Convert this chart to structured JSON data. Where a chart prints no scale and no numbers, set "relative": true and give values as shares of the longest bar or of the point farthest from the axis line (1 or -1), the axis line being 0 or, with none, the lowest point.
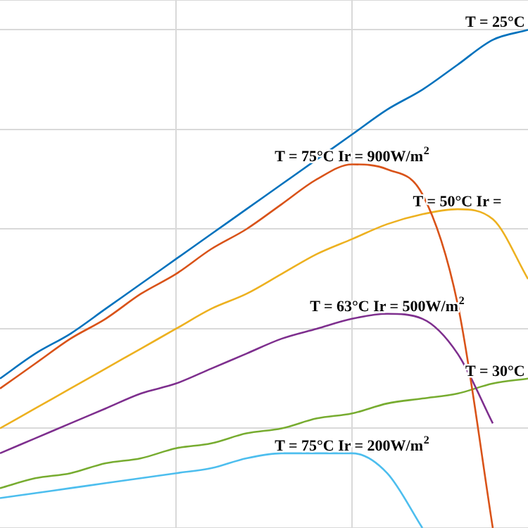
{
  "chart_data": {
    "type": "line",
    "relative": true,
    "grid": true,
    "marker": "none",
    "line_style": "solid",
    "legend": false,
    "tick_labels": false,
    "categories": [
      null,
      null,
      null,
      null,
      null,
      null,
      null,
      null,
      null,
      null,
      null,
      null,
      null,
      null,
      null,
      null
    ],
    "series": [
      {
        "name": "T = 25°C",
        "color": "#0072bd",
        "values": [
          0.3,
          0.35,
          0.39,
          0.44,
          0.49,
          0.54,
          0.59,
          0.64,
          0.69,
          0.74,
          0.79,
          0.84,
          0.88,
          0.93,
          0.98,
          1.0
        ]
      },
      {
        "name": "T = 75°C Ir = 900W/m$^{2}$",
        "color": "#d95319",
        "values": [
          0.28,
          0.33,
          0.38,
          0.42,
          0.47,
          0.51,
          0.56,
          0.6,
          0.65,
          0.7,
          0.73,
          0.72,
          0.67,
          0.45,
          0,
          null
        ]
      },
      {
        "name": "T = 50°C Ir =",
        "color": "#edb120",
        "values": [
          0.2,
          0.24,
          0.28,
          0.32,
          0.36,
          0.4,
          0.44,
          0.47,
          0.51,
          0.55,
          0.58,
          0.61,
          0.63,
          0.64,
          0.62,
          0.5
        ]
      },
      {
        "name": "T = 63°C Ir = 500W/m$^{2}$",
        "color": "#7e2f8e",
        "values": [
          0.15,
          0.18,
          0.21,
          0.24,
          0.27,
          0.29,
          0.32,
          0.35,
          0.38,
          0.4,
          0.42,
          0.43,
          0.42,
          0.35,
          0.21,
          null
        ]
      },
      {
        "name": "T = 30°C",
        "color": "#77ac30",
        "values": [
          0.08,
          0.1,
          0.11,
          0.13,
          0.14,
          0.16,
          0.17,
          0.19,
          0.2,
          0.22,
          0.23,
          0.25,
          0.26,
          0.27,
          0.29,
          0.3
        ]
      },
      {
        "name": "T = 75°C Ir = 200W/m$^{2}$",
        "color": "#4dbeee",
        "values": [
          0.06,
          0.07,
          0.08,
          0.09,
          0.1,
          0.11,
          0.12,
          0.14,
          0.15,
          0.15,
          0.15,
          0.11,
          0,
          null,
          null,
          null
        ]
      }
    ]
  }
}
